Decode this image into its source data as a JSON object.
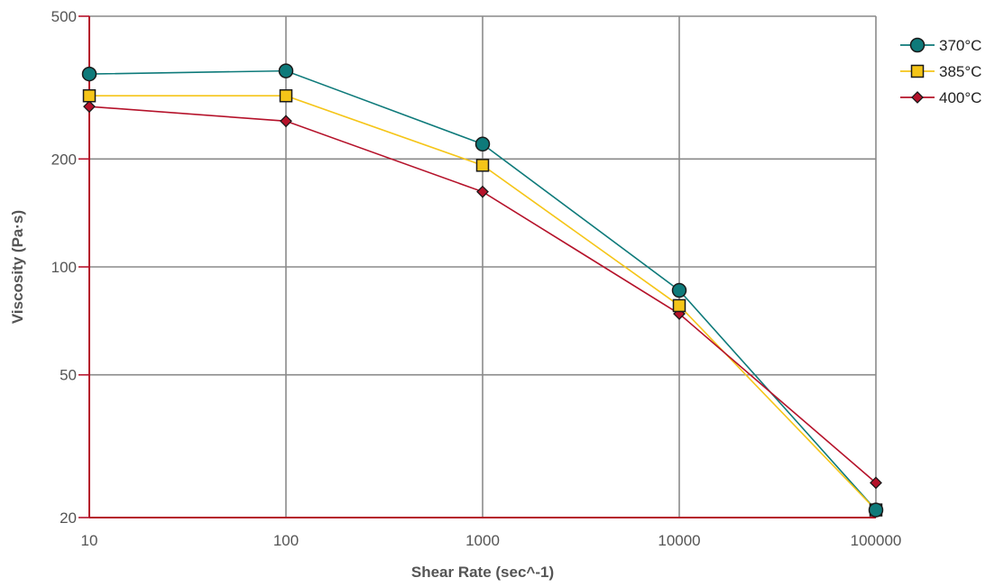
{
  "chart_data": {
    "type": "line",
    "title": "",
    "xlabel": "Shear Rate (sec^-1)",
    "ylabel": "Viscosity (Pa·s)",
    "x_scale": "log",
    "y_scale": "log",
    "xlim": [
      10,
      100000
    ],
    "ylim": [
      20,
      500
    ],
    "x_ticks": [
      "10",
      "100",
      "1000",
      "10000",
      "100000"
    ],
    "y_ticks": [
      "20",
      "50",
      "100",
      "200",
      "500"
    ],
    "grid": true,
    "legend_position": "top-right",
    "x": [
      10,
      100,
      1000,
      10000,
      100000
    ],
    "series": [
      {
        "name": "370°C",
        "values": [
          345,
          352,
          220,
          86,
          21
        ],
        "color": "#0e7a7a",
        "marker": "circle"
      },
      {
        "name": "385°C",
        "values": [
          300,
          300,
          192,
          78,
          21
        ],
        "color": "#f5c518",
        "marker": "square"
      },
      {
        "name": "400°C",
        "values": [
          280,
          255,
          162,
          74,
          25
        ],
        "color": "#b5122a",
        "marker": "diamond"
      }
    ],
    "colors": {
      "grid": "#8a8a8a",
      "axis_lines": "#b5122a",
      "marker_outline": "#1a1a1a"
    }
  }
}
